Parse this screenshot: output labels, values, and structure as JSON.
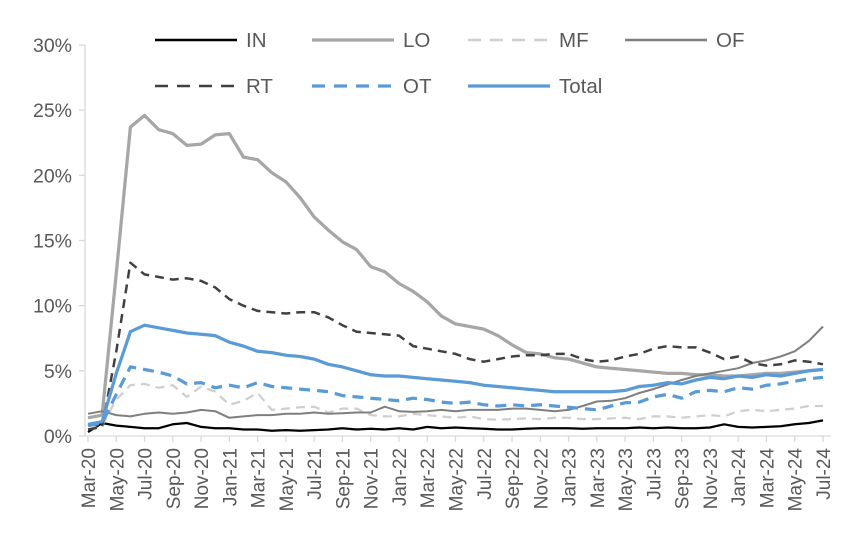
{
  "chart_data": {
    "type": "line",
    "title": "",
    "xlabel": "",
    "ylabel": "",
    "ylim": [
      0,
      30
    ],
    "grid": false,
    "legend_position": "top",
    "axis_color": "#d9d9d9",
    "text_color": "#595959",
    "y_ticks": [
      {
        "value": 0,
        "label": "0%"
      },
      {
        "value": 5,
        "label": "5%"
      },
      {
        "value": 10,
        "label": "10%"
      },
      {
        "value": 15,
        "label": "15%"
      },
      {
        "value": 20,
        "label": "20%"
      },
      {
        "value": 25,
        "label": "25%"
      },
      {
        "value": 30,
        "label": "30%"
      }
    ],
    "x_tick_labels": [
      "Mar-20",
      "May-20",
      "Jul-20",
      "Sep-20",
      "Nov-20",
      "Jan-21",
      "Mar-21",
      "May-21",
      "Jul-21",
      "Sep-21",
      "Nov-21",
      "Jan-22",
      "Mar-22",
      "May-22",
      "Jul-22",
      "Sep-22",
      "Nov-22",
      "Jan-23",
      "Mar-23",
      "May-23",
      "Jul-23",
      "Sep-23",
      "Nov-23",
      "Jan-24",
      "Mar-24",
      "May-24",
      "Jul-24"
    ],
    "x": [
      "Mar-20",
      "Apr-20",
      "May-20",
      "Jun-20",
      "Jul-20",
      "Aug-20",
      "Sep-20",
      "Oct-20",
      "Nov-20",
      "Dec-20",
      "Jan-21",
      "Feb-21",
      "Mar-21",
      "Apr-21",
      "May-21",
      "Jun-21",
      "Jul-21",
      "Aug-21",
      "Sep-21",
      "Oct-21",
      "Nov-21",
      "Dec-21",
      "Jan-22",
      "Feb-22",
      "Mar-22",
      "Apr-22",
      "May-22",
      "Jun-22",
      "Jul-22",
      "Aug-22",
      "Sep-22",
      "Oct-22",
      "Nov-22",
      "Dec-22",
      "Jan-23",
      "Feb-23",
      "Mar-23",
      "Apr-23",
      "May-23",
      "Jun-23",
      "Jul-23",
      "Aug-23",
      "Sep-23",
      "Oct-23",
      "Nov-23",
      "Dec-23",
      "Jan-24",
      "Feb-24",
      "Mar-24",
      "Apr-24",
      "May-24",
      "Jun-24",
      "Jul-24"
    ],
    "legend_order": [
      "IN",
      "LO",
      "MF",
      "OF",
      "RT",
      "OT",
      "Total"
    ],
    "series": [
      {
        "name": "IN",
        "color": "#000000",
        "style": "solid",
        "width": 2.25,
        "values": [
          0.3,
          1.0,
          0.8,
          0.7,
          0.6,
          0.6,
          0.9,
          1.0,
          0.7,
          0.6,
          0.6,
          0.5,
          0.5,
          0.4,
          0.45,
          0.4,
          0.45,
          0.5,
          0.6,
          0.5,
          0.55,
          0.5,
          0.6,
          0.5,
          0.7,
          0.6,
          0.65,
          0.6,
          0.55,
          0.5,
          0.5,
          0.55,
          0.6,
          0.6,
          0.6,
          0.55,
          0.6,
          0.6,
          0.6,
          0.65,
          0.6,
          0.65,
          0.6,
          0.6,
          0.65,
          0.9,
          0.7,
          0.65,
          0.7,
          0.75,
          0.9,
          1.0,
          1.2
        ]
      },
      {
        "name": "LO",
        "color": "#a6a6a6",
        "style": "solid",
        "width": 3.25,
        "values": [
          1.4,
          1.6,
          12.5,
          23.7,
          24.6,
          23.5,
          23.2,
          22.3,
          22.4,
          23.1,
          23.2,
          21.4,
          21.2,
          20.2,
          19.5,
          18.3,
          16.8,
          15.8,
          14.9,
          14.3,
          13.0,
          12.6,
          11.7,
          11.1,
          10.3,
          9.2,
          8.6,
          8.4,
          8.2,
          7.7,
          7.0,
          6.4,
          6.3,
          6.0,
          5.9,
          5.6,
          5.3,
          5.2,
          5.1,
          5.0,
          4.9,
          4.8,
          4.8,
          4.7,
          4.7,
          4.6,
          4.6,
          4.7,
          4.8,
          4.8,
          4.9,
          5.0,
          5.1
        ]
      },
      {
        "name": "MF",
        "color": "#d0cece",
        "style": "dashed",
        "width": 2.25,
        "values": [
          0.5,
          0.8,
          2.8,
          3.9,
          4.0,
          3.7,
          3.9,
          3.0,
          3.8,
          3.4,
          2.4,
          2.7,
          3.3,
          2.0,
          2.1,
          2.2,
          2.25,
          1.8,
          2.1,
          2.1,
          1.6,
          1.5,
          1.5,
          1.7,
          1.6,
          1.5,
          1.4,
          1.5,
          1.3,
          1.25,
          1.3,
          1.35,
          1.3,
          1.4,
          1.4,
          1.3,
          1.3,
          1.35,
          1.4,
          1.3,
          1.5,
          1.5,
          1.4,
          1.5,
          1.6,
          1.5,
          1.9,
          2.0,
          1.9,
          2.0,
          2.1,
          2.3,
          2.3
        ]
      },
      {
        "name": "OF",
        "color": "#7f7f7f",
        "style": "solid",
        "width": 2,
        "values": [
          1.7,
          1.9,
          1.6,
          1.5,
          1.7,
          1.8,
          1.7,
          1.8,
          2.0,
          1.9,
          1.4,
          1.5,
          1.6,
          1.6,
          1.7,
          1.7,
          1.8,
          1.7,
          1.75,
          1.8,
          1.8,
          2.25,
          1.9,
          1.85,
          1.9,
          2.0,
          1.9,
          2.0,
          2.0,
          2.0,
          2.1,
          2.1,
          2.0,
          1.9,
          2.0,
          2.3,
          2.65,
          2.7,
          2.9,
          3.3,
          3.6,
          3.95,
          4.3,
          4.6,
          4.8,
          5.0,
          5.2,
          5.6,
          5.8,
          6.1,
          6.5,
          7.3,
          8.4
        ]
      },
      {
        "name": "RT",
        "color": "#404040",
        "style": "dashed",
        "width": 2.5,
        "values": [
          0.5,
          0.7,
          6.5,
          13.3,
          12.4,
          12.2,
          12.0,
          12.1,
          11.9,
          11.4,
          10.5,
          10.0,
          9.6,
          9.5,
          9.4,
          9.5,
          9.5,
          9.1,
          8.5,
          8.0,
          7.9,
          7.8,
          7.7,
          6.9,
          6.7,
          6.5,
          6.3,
          5.9,
          5.7,
          5.9,
          6.1,
          6.2,
          6.2,
          6.3,
          6.3,
          5.9,
          5.7,
          5.8,
          6.1,
          6.3,
          6.7,
          6.9,
          6.8,
          6.8,
          6.4,
          5.9,
          6.1,
          5.6,
          5.4,
          5.5,
          5.8,
          5.7,
          5.5
        ]
      },
      {
        "name": "OT",
        "color": "#5b9bd5",
        "style": "dashed",
        "width": 3.25,
        "values": [
          0.8,
          1.0,
          3.2,
          5.3,
          5.1,
          4.9,
          4.6,
          4.0,
          4.1,
          3.7,
          3.9,
          3.7,
          4.1,
          3.8,
          3.7,
          3.6,
          3.5,
          3.4,
          3.1,
          3.0,
          2.9,
          2.8,
          2.7,
          2.9,
          2.8,
          2.6,
          2.5,
          2.6,
          2.4,
          2.3,
          2.4,
          2.3,
          2.4,
          2.3,
          2.2,
          2.1,
          2.0,
          2.3,
          2.55,
          2.6,
          3.0,
          3.2,
          2.9,
          3.4,
          3.5,
          3.4,
          3.7,
          3.6,
          3.9,
          4.0,
          4.2,
          4.4,
          4.5
        ]
      },
      {
        "name": "Total",
        "color": "#5b9bd5",
        "style": "solid",
        "width": 3.25,
        "values": [
          0.9,
          1.1,
          4.8,
          8.0,
          8.5,
          8.3,
          8.1,
          7.9,
          7.8,
          7.7,
          7.2,
          6.9,
          6.5,
          6.4,
          6.2,
          6.1,
          5.9,
          5.5,
          5.3,
          5.0,
          4.7,
          4.6,
          4.6,
          4.5,
          4.4,
          4.3,
          4.2,
          4.1,
          3.9,
          3.8,
          3.7,
          3.6,
          3.5,
          3.4,
          3.4,
          3.4,
          3.4,
          3.4,
          3.5,
          3.8,
          3.9,
          4.1,
          4.0,
          4.3,
          4.5,
          4.4,
          4.6,
          4.5,
          4.7,
          4.6,
          4.8,
          5.0,
          5.1
        ]
      }
    ]
  }
}
